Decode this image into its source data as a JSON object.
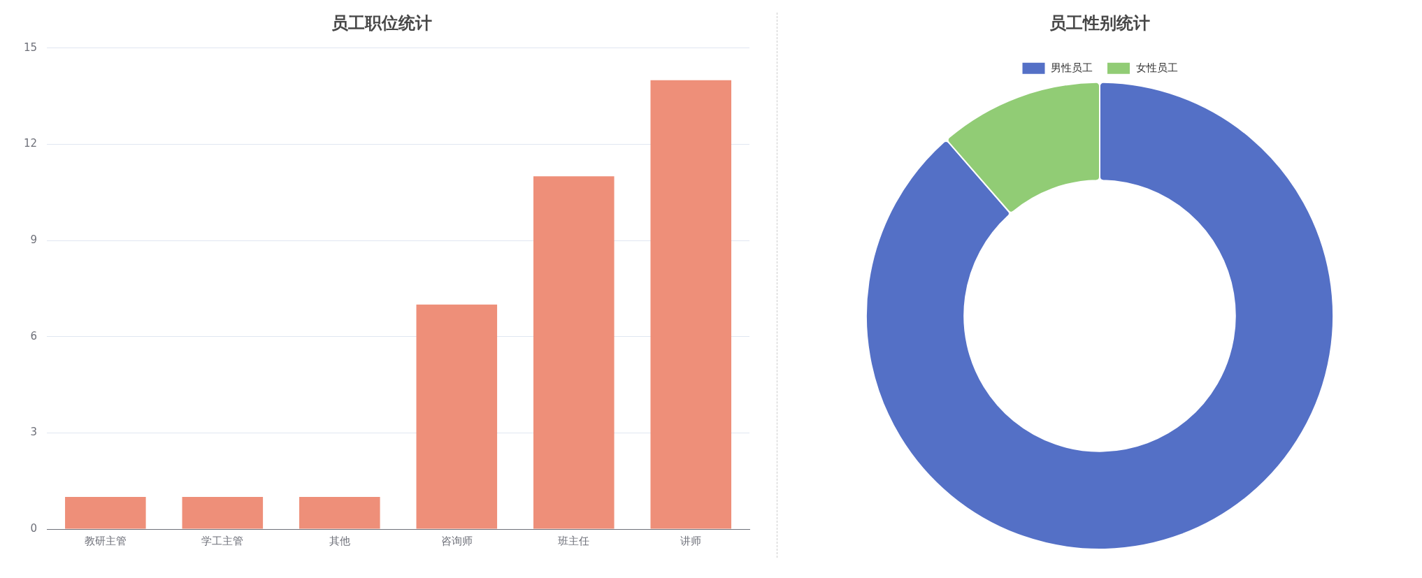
{
  "chart_data": [
    {
      "type": "bar",
      "title": "员工职位统计",
      "categories": [
        "教研主管",
        "学工主管",
        "其他",
        "咨询师",
        "班主任",
        "讲师"
      ],
      "values": [
        1,
        1,
        1,
        7,
        11,
        14
      ],
      "color": "#ee8f79",
      "ylim": [
        0,
        15
      ],
      "yticks": [
        0,
        3,
        6,
        9,
        12,
        15
      ],
      "grid": "y",
      "legend": false
    },
    {
      "type": "donut",
      "title": "员工性别统计",
      "categories": [
        "男性员工",
        "女性员工"
      ],
      "values": [
        88.6,
        11.4
      ],
      "colors": [
        "#5470c6",
        "#91cc75"
      ],
      "legend": "top"
    }
  ]
}
